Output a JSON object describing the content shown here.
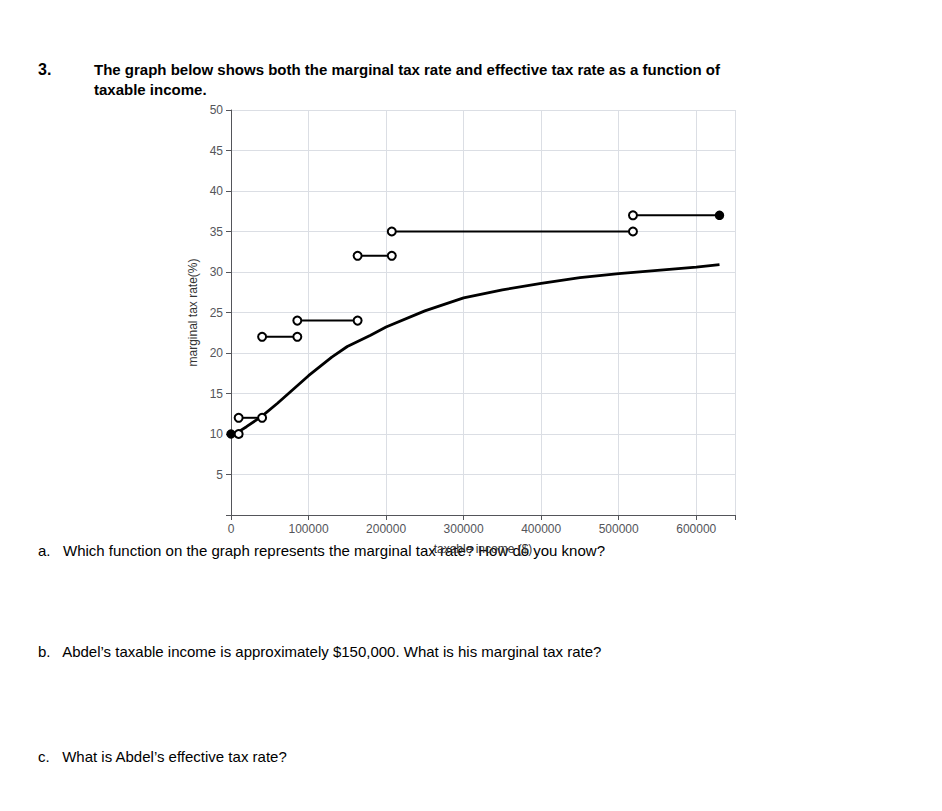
{
  "chart_data": {
    "type": "line",
    "xlabel": "taxable income ($)",
    "ylabel": "marginal tax rate(%)",
    "xlim": [
      0,
      650000
    ],
    "ylim": [
      0,
      50
    ],
    "xticks": [
      0,
      100000,
      200000,
      300000,
      400000,
      500000,
      600000
    ],
    "yticks": [
      {
        "value": 0,
        "label": ""
      },
      5,
      10,
      15,
      20,
      25,
      30,
      35,
      40,
      45,
      50
    ],
    "grid": true,
    "series": [
      {
        "type": "step",
        "color": "#000000",
        "marker": "circle",
        "steps": [
          {
            "x_start": 0,
            "x_end": 9875,
            "value": 10,
            "open_left": false,
            "open_right": true
          },
          {
            "x_start": 9875,
            "x_end": 40125,
            "value": 12,
            "open_left": true,
            "open_right": true
          },
          {
            "x_start": 40125,
            "x_end": 85525,
            "value": 22,
            "open_left": true,
            "open_right": true
          },
          {
            "x_start": 85525,
            "x_end": 163300,
            "value": 24,
            "open_left": true,
            "open_right": true
          },
          {
            "x_start": 163300,
            "x_end": 207350,
            "value": 32,
            "open_left": true,
            "open_right": true
          },
          {
            "x_start": 207350,
            "x_end": 518400,
            "value": 35,
            "open_left": true,
            "open_right": true
          },
          {
            "x_start": 518400,
            "x_end": 630000,
            "value": 37,
            "open_left": true,
            "open_right": false
          }
        ]
      },
      {
        "type": "line",
        "color": "#000000",
        "x": [
          0,
          5000,
          10000,
          20000,
          40000,
          60000,
          80000,
          100000,
          130000,
          150000,
          180000,
          200000,
          250000,
          300000,
          350000,
          400000,
          450000,
          500000,
          550000,
          600000,
          630000
        ],
        "values": [
          10,
          10.1,
          10.3,
          10.9,
          12.2,
          13.8,
          15.5,
          17.2,
          19.5,
          20.8,
          22.2,
          23.2,
          25.2,
          26.8,
          27.8,
          28.6,
          29.3,
          29.8,
          30.2,
          30.6,
          30.9
        ]
      }
    ],
    "annotations": [
      "3.",
      "The graph below shows both the marginal tax rate and effective tax rate as a function of\ntaxable income.",
      "a.   Which function on the graph represents the marginal tax rate? How do you know?",
      "b.   Abdel’s taxable income is approximately $150,000. What is his marginal tax rate?",
      "c.   What is Abdel’s effective tax rate?"
    ]
  }
}
